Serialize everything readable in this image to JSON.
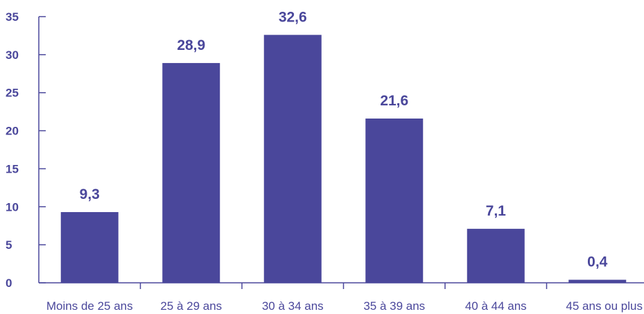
{
  "chart_data": {
    "type": "bar",
    "title": "",
    "xlabel": "",
    "ylabel": "",
    "categories": [
      "Moins de 25 ans",
      "25 à 29 ans",
      "30 à 34 ans",
      "35 à 39 ans",
      "40 à 44 ans",
      "45 ans ou plus"
    ],
    "values": [
      9.3,
      28.9,
      32.6,
      21.6,
      7.1,
      0.4
    ],
    "data_labels": [
      "9,3",
      "28,9",
      "32,6",
      "21,6",
      "7,1",
      "0,4"
    ],
    "ylim": [
      0,
      35
    ],
    "yticks": [
      0,
      5,
      10,
      15,
      20,
      25,
      30,
      35
    ],
    "ytick_labels": [
      "0",
      "5",
      "10",
      "15",
      "20",
      "25",
      "30",
      "35"
    ],
    "grid": false,
    "legend": "none"
  },
  "colors": {
    "bar": "#4a479b",
    "axis": "#4a479b",
    "tick_text": "#4a479b",
    "category_text": "#4a479b",
    "value_text": "#4a479b"
  }
}
